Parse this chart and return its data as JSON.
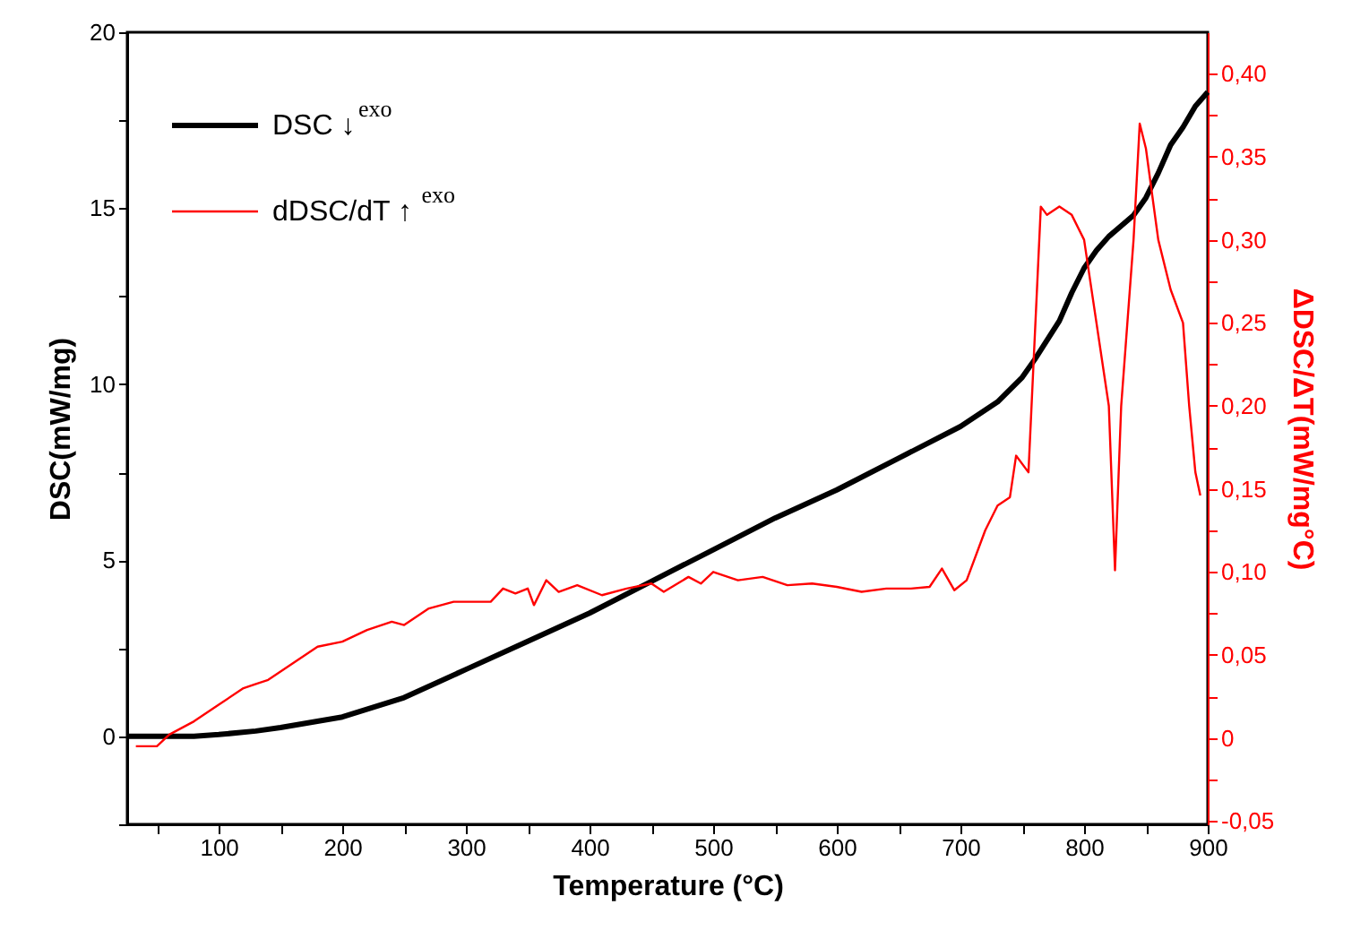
{
  "chart_data": {
    "type": "line",
    "xlabel": "Temperature (°C)",
    "ylabel": "DSC(mW/mg)",
    "y2label": "ΔDSC/ΔT(mW/mg°C)",
    "xlim": [
      26,
      900
    ],
    "xticks": [
      {
        "value": 50,
        "label": null
      },
      {
        "value": 100,
        "label": "100"
      },
      {
        "value": 150,
        "label": null
      },
      {
        "value": 200,
        "label": "200"
      },
      {
        "value": 250,
        "label": null
      },
      {
        "value": 300,
        "label": "300"
      },
      {
        "value": 350,
        "label": null
      },
      {
        "value": 400,
        "label": "400"
      },
      {
        "value": 450,
        "label": null
      },
      {
        "value": 500,
        "label": "500"
      },
      {
        "value": 550,
        "label": null
      },
      {
        "value": 600,
        "label": "600"
      },
      {
        "value": 650,
        "label": null
      },
      {
        "value": 700,
        "label": "700"
      },
      {
        "value": 750,
        "label": null
      },
      {
        "value": 800,
        "label": "800"
      },
      {
        "value": 850,
        "label": null
      },
      {
        "value": 900,
        "label": "900"
      }
    ],
    "ylim": [
      -2.5,
      20
    ],
    "yticks": [
      {
        "value": -2.5,
        "label": null
      },
      {
        "value": 0,
        "label": "0"
      },
      {
        "value": 2.5,
        "label": null
      },
      {
        "value": 5,
        "label": "5"
      },
      {
        "value": 7.5,
        "label": null
      },
      {
        "value": 10,
        "label": "10"
      },
      {
        "value": 12.5,
        "label": null
      },
      {
        "value": 15,
        "label": "15"
      },
      {
        "value": 17.5,
        "label": null
      },
      {
        "value": 20,
        "label": "20"
      }
    ],
    "y2lim": [
      -0.052,
      0.425
    ],
    "y2ticks": [
      {
        "value": -0.05,
        "label": "-0,05"
      },
      {
        "value": -0.025,
        "label": null
      },
      {
        "value": 0,
        "label": "0"
      },
      {
        "value": 0.025,
        "label": null
      },
      {
        "value": 0.05,
        "label": "0,05"
      },
      {
        "value": 0.075,
        "label": null
      },
      {
        "value": 0.1,
        "label": "0,10"
      },
      {
        "value": 0.125,
        "label": null
      },
      {
        "value": 0.15,
        "label": "0,15"
      },
      {
        "value": 0.175,
        "label": null
      },
      {
        "value": 0.2,
        "label": "0,20"
      },
      {
        "value": 0.225,
        "label": null
      },
      {
        "value": 0.25,
        "label": "0,25"
      },
      {
        "value": 0.275,
        "label": null
      },
      {
        "value": 0.3,
        "label": "0,30"
      },
      {
        "value": 0.325,
        "label": null
      },
      {
        "value": 0.35,
        "label": "0,35"
      },
      {
        "value": 0.375,
        "label": null
      },
      {
        "value": 0.4,
        "label": "0,40"
      }
    ],
    "grid": false,
    "legend": "top left",
    "marker": "none",
    "line_style": "solid",
    "series": [
      {
        "name": "DSC ↓$^{exo}$",
        "color": "#000000",
        "x": [
          26,
          50,
          80,
          100,
          130,
          150,
          200,
          250,
          300,
          350,
          400,
          450,
          500,
          550,
          600,
          650,
          700,
          730,
          750,
          760,
          780,
          790,
          800,
          810,
          820,
          840,
          850,
          860,
          870,
          880,
          890,
          900
        ],
        "values": [
          0,
          0,
          0,
          0.05,
          0.15,
          0.25,
          0.55,
          1.1,
          1.9,
          2.7,
          3.5,
          4.4,
          5.3,
          6.2,
          7.0,
          7.9,
          8.8,
          9.5,
          10.2,
          10.7,
          11.8,
          12.6,
          13.3,
          13.8,
          14.2,
          14.8,
          15.3,
          16.0,
          16.8,
          17.3,
          17.9,
          18.3
        ]
      },
      {
        "name": "dDSC/dT ↑$^{exo}$",
        "color": "#ff0000",
        "axis": "y2",
        "x": [
          33,
          50,
          60,
          80,
          100,
          120,
          140,
          160,
          180,
          200,
          220,
          240,
          250,
          270,
          290,
          320,
          330,
          340,
          350,
          355,
          365,
          375,
          390,
          410,
          430,
          450,
          460,
          480,
          490,
          500,
          520,
          540,
          560,
          580,
          600,
          620,
          640,
          660,
          675,
          685,
          695,
          705,
          720,
          730,
          740,
          745,
          755,
          765,
          770,
          780,
          790,
          800,
          810,
          820,
          825,
          830,
          840,
          845,
          850,
          860,
          870,
          880,
          885,
          890,
          894
        ],
        "values": [
          -0.005,
          -0.005,
          0.002,
          0.01,
          0.02,
          0.03,
          0.035,
          0.045,
          0.055,
          0.058,
          0.065,
          0.07,
          0.068,
          0.078,
          0.082,
          0.082,
          0.09,
          0.087,
          0.09,
          0.08,
          0.095,
          0.088,
          0.092,
          0.086,
          0.09,
          0.093,
          0.088,
          0.097,
          0.093,
          0.1,
          0.095,
          0.097,
          0.092,
          0.093,
          0.091,
          0.088,
          0.09,
          0.09,
          0.091,
          0.102,
          0.089,
          0.095,
          0.125,
          0.14,
          0.145,
          0.17,
          0.16,
          0.32,
          0.315,
          0.32,
          0.315,
          0.3,
          0.25,
          0.2,
          0.101,
          0.2,
          0.3,
          0.37,
          0.355,
          0.3,
          0.27,
          0.25,
          0.2,
          0.16,
          0.146
        ]
      }
    ]
  }
}
